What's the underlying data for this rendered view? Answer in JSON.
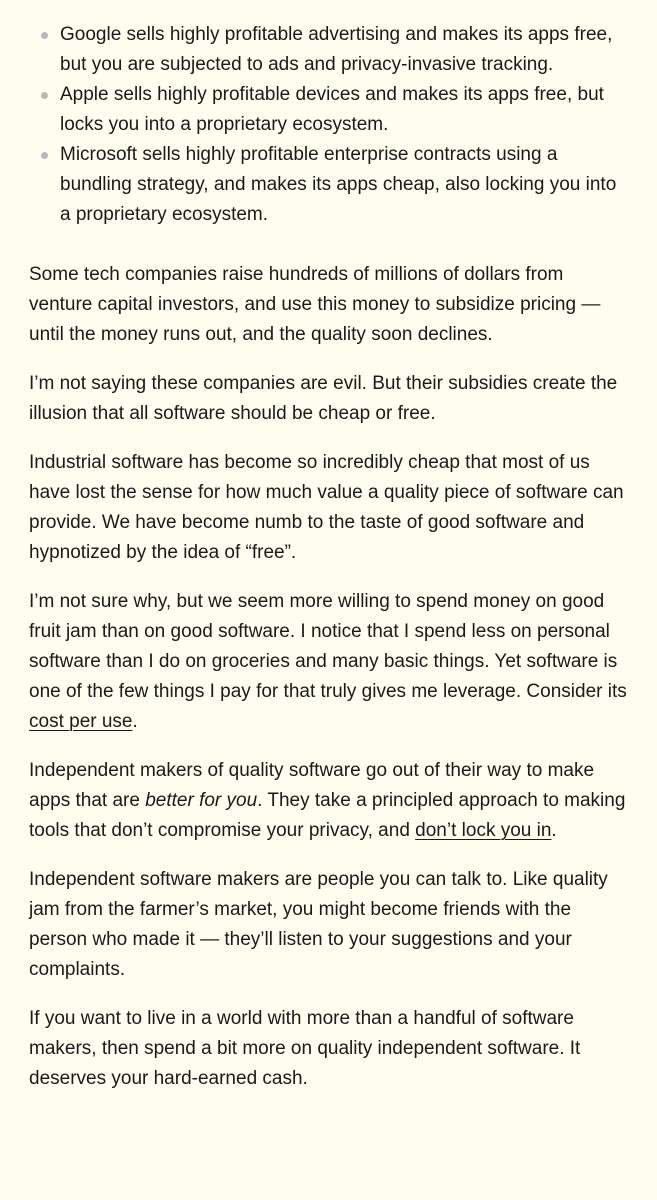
{
  "bullets": [
    "Google sells highly profitable advertising and makes its apps free, but you are subjected to ads and privacy-invasive tracking.",
    "Apple sells highly profitable devices and makes its apps free, but locks you into a proprietary ecosystem.",
    "Microsoft sells highly profitable enterprise contracts using a bundling strategy, and makes its apps cheap, also locking you into a proprietary ecosystem."
  ],
  "p1": "Some tech companies raise hundreds of millions of dollars from venture capital investors, and use this money to subsidize pricing — until the money runs out, and the quality soon declines.",
  "p2": "I’m not saying these companies are evil. But their subsidies create the illusion that all software should be cheap or free.",
  "p3": "Industrial software has become so incredibly cheap that most of us have lost the sense for how much value a quality piece of software can provide. We have become numb to the taste of good software and hypnotized by the idea of “free”.",
  "p4": {
    "text": "I’m not sure why, but we seem more willing to spend money on good fruit jam than on good software. I notice that I spend less on personal software than I do on groceries and many basic things. Yet software is one of the few things I pay for that truly gives me leverage. Consider its ",
    "link": "cost per use",
    "end": "."
  },
  "p5": {
    "before": "Independent makers of quality software go out of their way to make apps that are ",
    "em": "better for you",
    "middle": ". They take a principled approach to making tools that don’t compromise your privacy, and ",
    "link": "don’t lock you in",
    "end": "."
  },
  "p6": "Independent software makers are people you can talk to. Like quality jam from the farmer’s market, you might become friends with the person who made it — they’ll listen to your suggestions and your complaints.",
  "p7": "If you want to live in a world with more than a handful of software makers, then spend a bit more on quality independent software. It deserves your hard-earned cash."
}
